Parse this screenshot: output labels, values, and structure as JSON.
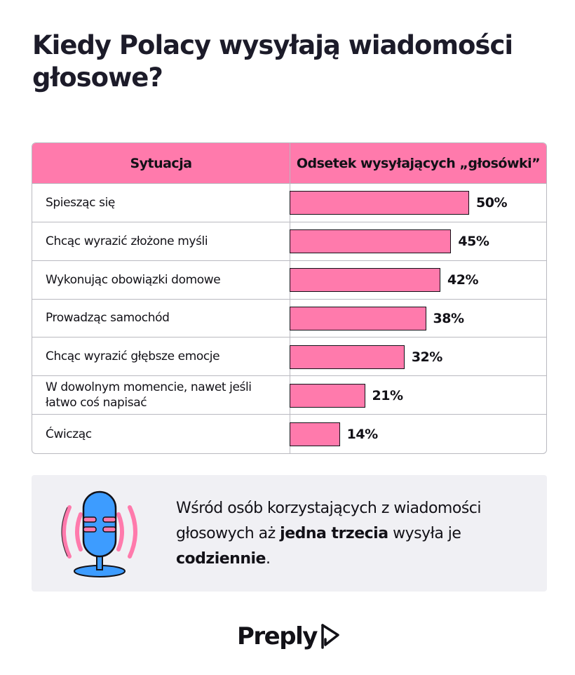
{
  "title": "Kiedy Polacy wysyłają wiadomości głosowe?",
  "colors": {
    "bar": "#ff7aac",
    "header": "#ff7aac",
    "mic_body": "#3d9cff",
    "panel": "#f0f0f4"
  },
  "chart_data": {
    "type": "bar",
    "orientation": "horizontal",
    "columns": [
      "Sytuacja",
      "Odsetek wysyłających „głosówki”"
    ],
    "categories": [
      "Spiesząc się",
      "Chcąc wyrazić złożone myśli",
      "Wykonując obowiązki domowe",
      "Prowadząc samochód",
      "Chcąc wyrazić głębsze emocje",
      "W dowolnym momencie, nawet jeśli łatwo coś napisać",
      "Ćwicząc"
    ],
    "values": [
      50,
      45,
      42,
      38,
      32,
      21,
      14
    ],
    "value_labels": [
      "50%",
      "45%",
      "42%",
      "38%",
      "32%",
      "21%",
      "14%"
    ],
    "unit": "%"
  },
  "info": {
    "icon": "microphone-icon",
    "text_1": "Wśród osób korzystających z wiadomości głosowych aż ",
    "bold_1": "jedna trzecia",
    "text_2": " wysyła je ",
    "bold_2": "codziennie",
    "text_3": "."
  },
  "logo": {
    "text": "Preply",
    "icon": "preply-logo-icon"
  }
}
